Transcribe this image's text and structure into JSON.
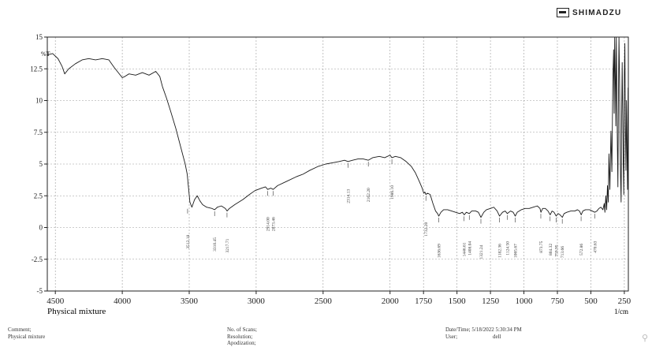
{
  "brand": {
    "name": "SHIMADZU",
    "icon": "shimadzu-logo-icon"
  },
  "chart_data": {
    "type": "line",
    "ylabel": "%T",
    "xlabel": "Physical mixture",
    "x_unit_label": "1/cm",
    "xlim": [
      4560,
      220
    ],
    "ylim": [
      -5,
      15
    ],
    "x_ticks": [
      4500,
      4000,
      3500,
      3000,
      2500,
      2000,
      1750,
      1500,
      1250,
      1000,
      750,
      500,
      250
    ],
    "y_ticks": [
      15,
      12.5,
      10,
      7.5,
      5,
      2.5,
      0,
      -2.5,
      -5
    ],
    "x_tick_labels": [
      "4500",
      "4000",
      "3500",
      "3000",
      "2500",
      "2000",
      "1750",
      "1500",
      "1250",
      "1000",
      "750",
      "500",
      "250"
    ],
    "y_tick_labels": [
      "15",
      "12.5",
      "10",
      "7.5",
      "5",
      "2.5",
      "0",
      "-2.5",
      "-5"
    ],
    "grid": true,
    "series": [
      {
        "points": [
          [
            4560,
            13.6
          ],
          [
            4520,
            13.7
          ],
          [
            4480,
            13.3
          ],
          [
            4450,
            12.7
          ],
          [
            4430,
            12.1
          ],
          [
            4400,
            12.5
          ],
          [
            4350,
            12.9
          ],
          [
            4300,
            13.2
          ],
          [
            4250,
            13.3
          ],
          [
            4200,
            13.2
          ],
          [
            4150,
            13.3
          ],
          [
            4100,
            13.2
          ],
          [
            4060,
            12.6
          ],
          [
            4000,
            11.8
          ],
          [
            3980,
            11.9
          ],
          [
            3950,
            12.1
          ],
          [
            3900,
            12.0
          ],
          [
            3850,
            12.2
          ],
          [
            3800,
            12.0
          ],
          [
            3750,
            12.3
          ],
          [
            3720,
            11.9
          ],
          [
            3700,
            11.1
          ],
          [
            3670,
            10.2
          ],
          [
            3640,
            9.2
          ],
          [
            3600,
            7.8
          ],
          [
            3570,
            6.6
          ],
          [
            3545,
            5.6
          ],
          [
            3530,
            5.0
          ],
          [
            3515,
            4.2
          ],
          [
            3505,
            3.1
          ],
          [
            3495,
            2.0
          ],
          [
            3480,
            1.6
          ],
          [
            3460,
            2.2
          ],
          [
            3440,
            2.5
          ],
          [
            3420,
            2.1
          ],
          [
            3400,
            1.8
          ],
          [
            3370,
            1.6
          ],
          [
            3330,
            1.5
          ],
          [
            3310,
            1.4
          ],
          [
            3290,
            1.6
          ],
          [
            3260,
            1.7
          ],
          [
            3230,
            1.5
          ],
          [
            3217,
            1.3
          ],
          [
            3200,
            1.5
          ],
          [
            3160,
            1.8
          ],
          [
            3100,
            2.2
          ],
          [
            3050,
            2.6
          ],
          [
            3010,
            2.9
          ],
          [
            2960,
            3.1
          ],
          [
            2930,
            3.2
          ],
          [
            2914,
            3.0
          ],
          [
            2890,
            3.1
          ],
          [
            2873,
            3.0
          ],
          [
            2840,
            3.3
          ],
          [
            2780,
            3.6
          ],
          [
            2700,
            4.0
          ],
          [
            2650,
            4.2
          ],
          [
            2600,
            4.5
          ],
          [
            2540,
            4.8
          ],
          [
            2480,
            5.0
          ],
          [
            2430,
            5.1
          ],
          [
            2380,
            5.2
          ],
          [
            2340,
            5.3
          ],
          [
            2314,
            5.2
          ],
          [
            2280,
            5.3
          ],
          [
            2240,
            5.4
          ],
          [
            2200,
            5.4
          ],
          [
            2162,
            5.3
          ],
          [
            2130,
            5.5
          ],
          [
            2080,
            5.6
          ],
          [
            2040,
            5.5
          ],
          [
            2000,
            5.7
          ],
          [
            1986,
            5.5
          ],
          [
            1960,
            5.6
          ],
          [
            1920,
            5.5
          ],
          [
            1880,
            5.2
          ],
          [
            1840,
            4.8
          ],
          [
            1810,
            4.3
          ],
          [
            1780,
            3.6
          ],
          [
            1760,
            3.1
          ],
          [
            1748,
            2.7
          ],
          [
            1740,
            2.8
          ],
          [
            1732,
            2.6
          ],
          [
            1720,
            2.7
          ],
          [
            1700,
            2.6
          ],
          [
            1680,
            1.9
          ],
          [
            1660,
            1.3
          ],
          [
            1645,
            1.1
          ],
          [
            1636,
            0.9
          ],
          [
            1620,
            1.2
          ],
          [
            1600,
            1.4
          ],
          [
            1570,
            1.4
          ],
          [
            1540,
            1.3
          ],
          [
            1510,
            1.2
          ],
          [
            1480,
            1.1
          ],
          [
            1460,
            1.2
          ],
          [
            1446,
            1.0
          ],
          [
            1430,
            1.2
          ],
          [
            1408,
            1.1
          ],
          [
            1390,
            1.3
          ],
          [
            1360,
            1.3
          ],
          [
            1340,
            1.2
          ],
          [
            1321,
            0.8
          ],
          [
            1300,
            1.2
          ],
          [
            1280,
            1.4
          ],
          [
            1250,
            1.5
          ],
          [
            1225,
            1.6
          ],
          [
            1200,
            1.3
          ],
          [
            1182,
            0.9
          ],
          [
            1160,
            1.2
          ],
          [
            1140,
            1.3
          ],
          [
            1124,
            1.1
          ],
          [
            1100,
            1.3
          ],
          [
            1080,
            1.2
          ],
          [
            1065,
            0.9
          ],
          [
            1050,
            1.2
          ],
          [
            1020,
            1.4
          ],
          [
            990,
            1.5
          ],
          [
            960,
            1.5
          ],
          [
            930,
            1.6
          ],
          [
            900,
            1.7
          ],
          [
            880,
            1.5
          ],
          [
            873,
            1.2
          ],
          [
            860,
            1.5
          ],
          [
            840,
            1.5
          ],
          [
            820,
            1.3
          ],
          [
            804,
            1.0
          ],
          [
            790,
            1.3
          ],
          [
            775,
            1.2
          ],
          [
            759,
            0.9
          ],
          [
            745,
            1.1
          ],
          [
            730,
            1.0
          ],
          [
            713,
            0.8
          ],
          [
            700,
            1.1
          ],
          [
            680,
            1.2
          ],
          [
            650,
            1.3
          ],
          [
            620,
            1.3
          ],
          [
            600,
            1.4
          ],
          [
            585,
            1.3
          ],
          [
            572,
            1.0
          ],
          [
            560,
            1.3
          ],
          [
            540,
            1.4
          ],
          [
            510,
            1.4
          ],
          [
            490,
            1.3
          ],
          [
            470,
            1.2
          ],
          [
            455,
            1.3
          ],
          [
            440,
            1.5
          ],
          [
            425,
            1.6
          ],
          [
            410,
            1.4
          ],
          [
            400,
            1.9
          ],
          [
            395,
            1.2
          ],
          [
            388,
            2.5
          ],
          [
            382,
            1.4
          ],
          [
            376,
            3.3
          ],
          [
            370,
            2.0
          ],
          [
            365,
            5.8
          ],
          [
            358,
            3.0
          ],
          [
            350,
            7.6
          ],
          [
            343,
            4.4
          ],
          [
            336,
            11.5
          ],
          [
            330,
            14.0
          ],
          [
            326,
            9.0
          ],
          [
            322,
            15.0
          ],
          [
            318,
            12.0
          ],
          [
            314,
            8.0
          ],
          [
            310,
            15.0
          ],
          [
            306,
            11.0
          ],
          [
            302,
            6.5
          ],
          [
            298,
            3.2
          ],
          [
            294,
            10.0
          ],
          [
            290,
            15.0
          ],
          [
            286,
            12.0
          ],
          [
            282,
            7.5
          ],
          [
            278,
            4.0
          ],
          [
            274,
            2.0
          ],
          [
            270,
            8.5
          ],
          [
            266,
            13.0
          ],
          [
            262,
            9.0
          ],
          [
            258,
            5.0
          ],
          [
            254,
            2.6
          ],
          [
            250,
            12.0
          ],
          [
            246,
            14.5
          ],
          [
            242,
            8.0
          ],
          [
            238,
            4.5
          ],
          [
            234,
            10.0
          ],
          [
            230,
            6.0
          ],
          [
            226,
            3.0
          ],
          [
            222,
            11.0
          ],
          [
            220,
            7.5
          ]
        ]
      }
    ],
    "annotations": [
      {
        "x": 3512.18,
        "label": "3512.18",
        "y": 1.6
      },
      {
        "x": 3310.45,
        "label": "3310.45",
        "y": 1.4
      },
      {
        "x": 3217.71,
        "label": "3217.71",
        "y": 1.3
      },
      {
        "x": 2914.0,
        "label": "2914.00",
        "y": 3.0
      },
      {
        "x": 2873.46,
        "label": "2873.46",
        "y": 3.0
      },
      {
        "x": 2314.13,
        "label": "2314.13",
        "y": 5.2
      },
      {
        "x": 2162.2,
        "label": "2162.20",
        "y": 5.3
      },
      {
        "x": 1986.1,
        "label": "1986.10",
        "y": 5.5
      },
      {
        "x": 1732.2,
        "label": "1732.20",
        "y": 2.6
      },
      {
        "x": 1636.69,
        "label": "1636.69",
        "y": 0.9
      },
      {
        "x": 1446.61,
        "label": "1446.61",
        "y": 1.0
      },
      {
        "x": 1408.04,
        "label": "1408.04",
        "y": 1.1
      },
      {
        "x": 1321.24,
        "label": "1321.24",
        "y": 0.8
      },
      {
        "x": 1182.36,
        "label": "1182.36",
        "y": 0.9
      },
      {
        "x": 1124.5,
        "label": "1124.50",
        "y": 1.1
      },
      {
        "x": 1065.67,
        "label": "1065.67",
        "y": 0.9
      },
      {
        "x": 873.75,
        "label": "873.75",
        "y": 1.2
      },
      {
        "x": 804.32,
        "label": "804.32",
        "y": 1.0
      },
      {
        "x": 759.95,
        "label": "759.95",
        "y": 0.9
      },
      {
        "x": 713.66,
        "label": "713.66",
        "y": 0.8
      },
      {
        "x": 572.86,
        "label": "572.86",
        "y": 1.0
      },
      {
        "x": 470.63,
        "label": "470.63",
        "y": 1.2
      }
    ]
  },
  "footer": {
    "comment_label": "Comment;",
    "comment_value": "Physical mixture",
    "scans_label": "No. of Scans;",
    "resolution_label": "Resolution;",
    "apodization_label": "Apodization;",
    "datetime_label": "Date/Time; 5/18/2022 5:30:34 PM",
    "user_label": "User;",
    "user_value": "dell"
  },
  "colors": {
    "trace": "#1a1a1a",
    "grid": "#9a9a9a",
    "axis": "#222222"
  }
}
